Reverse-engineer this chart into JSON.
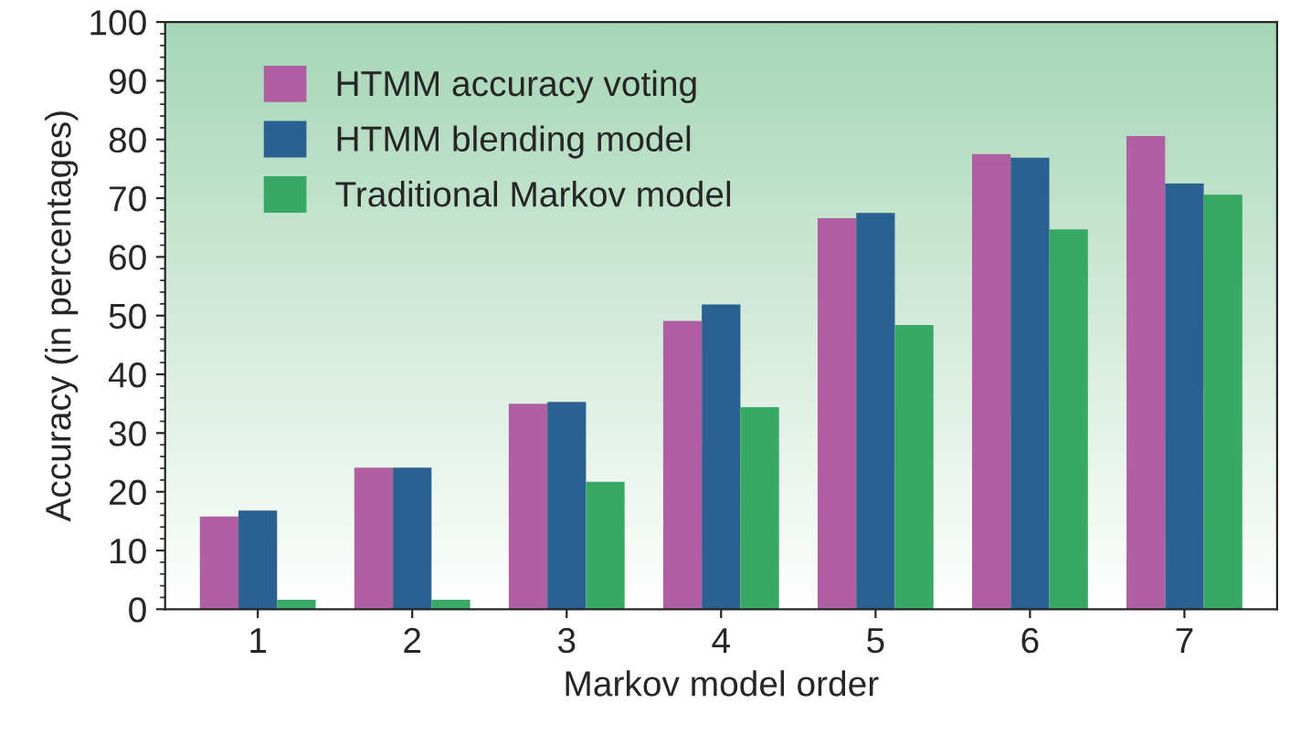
{
  "chart_data": {
    "type": "bar",
    "xlabel": "Markov model order",
    "ylabel": "Accuracy (in percentages)",
    "categories": [
      "1",
      "2",
      "3",
      "4",
      "5",
      "6",
      "7"
    ],
    "series": [
      {
        "name": "HTMM accuracy voting",
        "color": "#b05fa3",
        "values": [
          15.8,
          24.1,
          35.0,
          49.1,
          66.6,
          77.5,
          80.6
        ]
      },
      {
        "name": "HTMM blending model",
        "color": "#2a6190",
        "values": [
          16.8,
          24.1,
          35.3,
          51.9,
          67.5,
          76.9,
          72.5
        ]
      },
      {
        "name": "Traditional Markov model",
        "color": "#38a865",
        "values": [
          1.6,
          1.6,
          21.7,
          34.4,
          48.4,
          64.7,
          70.6
        ]
      }
    ],
    "ylim": [
      0,
      100
    ],
    "yticks": [
      0,
      10,
      20,
      30,
      40,
      50,
      60,
      70,
      80,
      90,
      100
    ],
    "grid": false,
    "legend": "top left"
  }
}
